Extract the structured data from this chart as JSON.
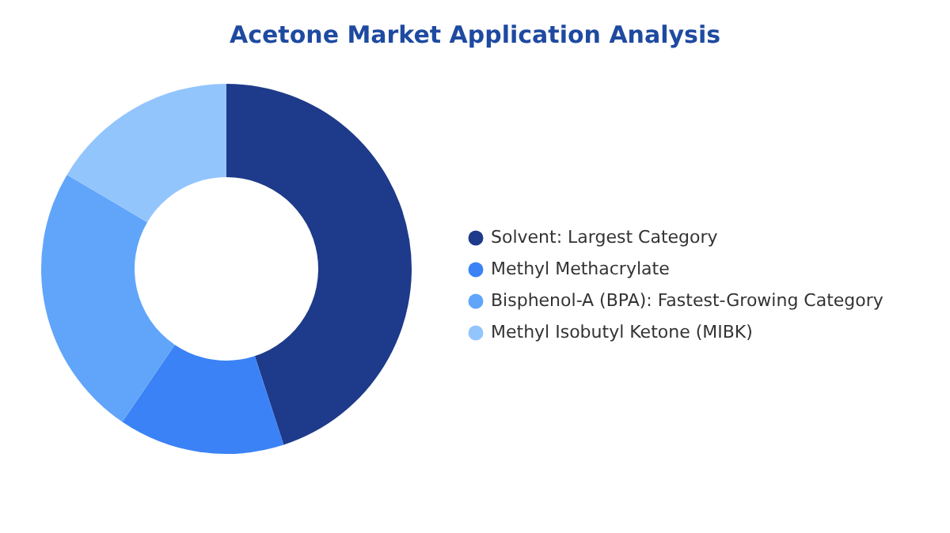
{
  "chart_data": {
    "type": "donut",
    "title": "Acetone Market Application Analysis",
    "categories": [
      "Solvent: Largest Category",
      "Methyl Methacrylate",
      "Bisphenol-A (BPA): Fastest-Growing Category",
      "Methyl Isobutyl Ketone (MIBK)"
    ],
    "values": [
      45,
      14.5,
      24,
      16.5
    ],
    "colors": [
      "#1e3a8a",
      "#3b82f6",
      "#60a5fa",
      "#93c5fd"
    ],
    "legend": "right"
  }
}
